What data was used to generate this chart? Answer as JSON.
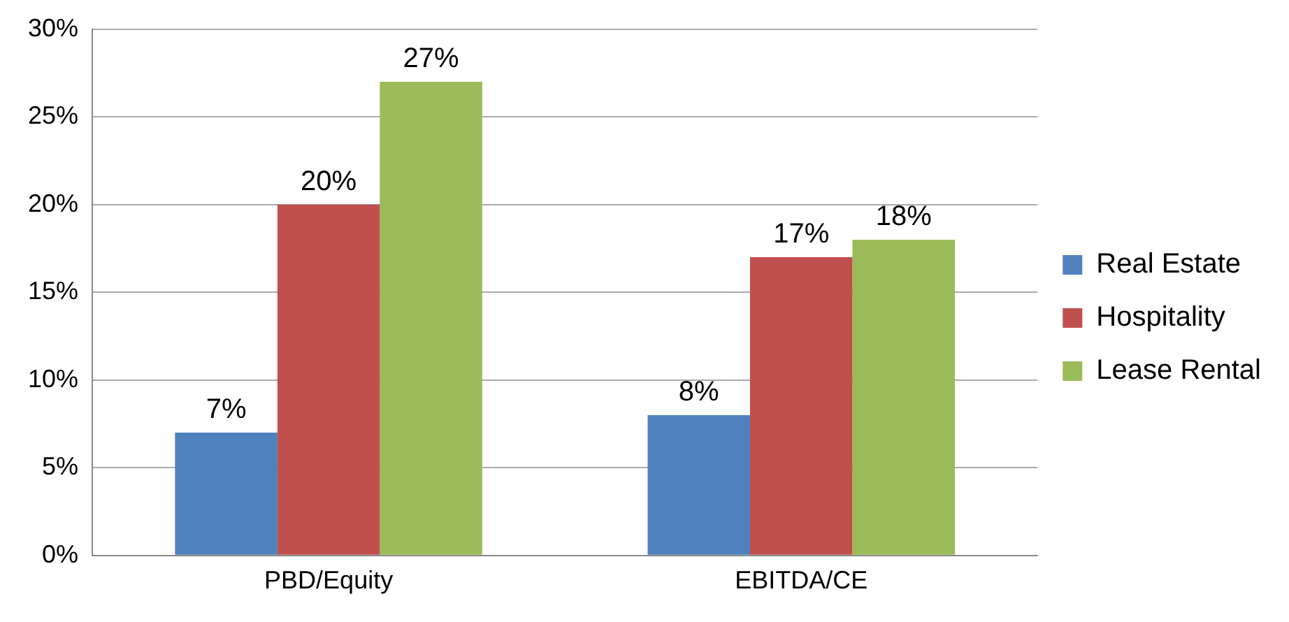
{
  "chart_data": {
    "type": "bar",
    "categories": [
      "PBD/Equity",
      "EBITDA/CE"
    ],
    "series": [
      {
        "name": "Real Estate",
        "color": "#4f81bd",
        "values": [
          7,
          8
        ],
        "value_labels": [
          "7%",
          "8%"
        ]
      },
      {
        "name": "Hospitality",
        "color": "#c0504d",
        "values": [
          20,
          17
        ],
        "value_labels": [
          "20%",
          "17%"
        ]
      },
      {
        "name": "Lease Rental",
        "color": "#9bbb59",
        "values": [
          27,
          18
        ],
        "value_labels": [
          "27%",
          "18%"
        ]
      }
    ],
    "ylim": [
      0,
      30
    ],
    "yticks": [
      {
        "value": 0,
        "label": "0%"
      },
      {
        "value": 5,
        "label": "5%"
      },
      {
        "value": 10,
        "label": "10%"
      },
      {
        "value": 15,
        "label": "15%"
      },
      {
        "value": 20,
        "label": "20%"
      },
      {
        "value": 25,
        "label": "25%"
      },
      {
        "value": 30,
        "label": "30%"
      }
    ],
    "grid": "y",
    "legend": "right"
  }
}
